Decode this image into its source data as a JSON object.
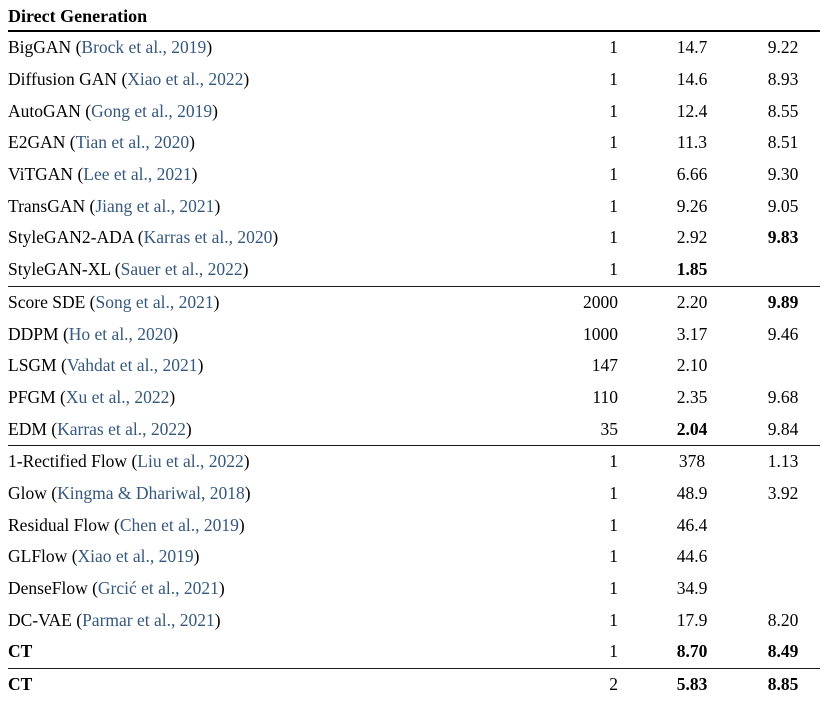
{
  "colors": {
    "citation_blue": "#35587E",
    "text_black": "#000000",
    "rule_black": "#000000"
  },
  "table": {
    "header": "Direct Generation",
    "groups": [
      {
        "rows": [
          {
            "method": "BigGAN",
            "cite": "Brock et al., 2019",
            "nfe": "1",
            "fid": "14.7",
            "is": "9.22"
          },
          {
            "method": "Diffusion GAN",
            "cite": "Xiao et al., 2022",
            "nfe": "1",
            "fid": "14.6",
            "is": "8.93"
          },
          {
            "method": "AutoGAN",
            "cite": "Gong et al., 2019",
            "nfe": "1",
            "fid": "12.4",
            "is": "8.55"
          },
          {
            "method": "E2GAN",
            "cite": "Tian et al., 2020",
            "nfe": "1",
            "fid": "11.3",
            "is": "8.51"
          },
          {
            "method": "ViTGAN",
            "cite": "Lee et al., 2021",
            "nfe": "1",
            "fid": "6.66",
            "is": "9.30"
          },
          {
            "method": "TransGAN",
            "cite": "Jiang et al., 2021",
            "nfe": "1",
            "fid": "9.26",
            "is": "9.05"
          },
          {
            "method": "StyleGAN2-ADA",
            "cite": "Karras et al., 2020",
            "nfe": "1",
            "fid": "2.92",
            "is": "9.83",
            "bold_is": true
          },
          {
            "method": "StyleGAN-XL",
            "cite": "Sauer et al., 2022",
            "nfe": "1",
            "fid": "1.85",
            "is": "",
            "bold_fid": true
          }
        ]
      },
      {
        "rows": [
          {
            "method": "Score SDE",
            "cite": "Song et al., 2021",
            "nfe": "2000",
            "fid": "2.20",
            "is": "9.89",
            "bold_is": true
          },
          {
            "method": "DDPM",
            "cite": "Ho et al., 2020",
            "nfe": "1000",
            "fid": "3.17",
            "is": "9.46"
          },
          {
            "method": "LSGM",
            "cite": "Vahdat et al., 2021",
            "nfe": "147",
            "fid": "2.10",
            "is": ""
          },
          {
            "method": "PFGM",
            "cite": "Xu et al., 2022",
            "nfe": "110",
            "fid": "2.35",
            "is": "9.68"
          },
          {
            "method": "EDM",
            "cite": "Karras et al., 2022",
            "nfe": "35",
            "fid": "2.04",
            "is": "9.84",
            "bold_fid": true
          }
        ]
      },
      {
        "rows": [
          {
            "method": "1-Rectified Flow",
            "cite": "Liu et al., 2022",
            "nfe": "1",
            "fid": "378",
            "is": "1.13"
          },
          {
            "method": "Glow",
            "cite": "Kingma & Dhariwal, 2018",
            "nfe": "1",
            "fid": "48.9",
            "is": "3.92"
          },
          {
            "method": "Residual Flow",
            "cite": "Chen et al., 2019",
            "nfe": "1",
            "fid": "46.4",
            "is": ""
          },
          {
            "method": "GLFlow",
            "cite": "Xiao et al., 2019",
            "nfe": "1",
            "fid": "44.6",
            "is": ""
          },
          {
            "method": "DenseFlow",
            "cite": "Grcić et al., 2021",
            "nfe": "1",
            "fid": "34.9",
            "is": ""
          },
          {
            "method": "DC-VAE",
            "cite": "Parmar et al., 2021",
            "nfe": "1",
            "fid": "17.9",
            "is": "8.20"
          },
          {
            "method": "CT",
            "cite": null,
            "nfe": "1",
            "fid": "8.70",
            "is": "8.49",
            "bold_method": true,
            "bold_fid": true,
            "bold_is": true
          }
        ]
      },
      {
        "rows": [
          {
            "method": "CT",
            "cite": null,
            "nfe": "2",
            "fid": "5.83",
            "is": "8.85",
            "bold_method": true,
            "bold_fid": true,
            "bold_is": true
          }
        ]
      }
    ]
  }
}
